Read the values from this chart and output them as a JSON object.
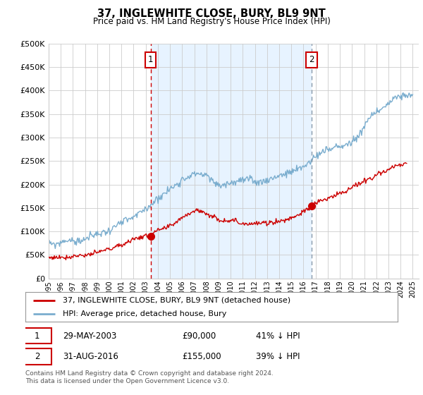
{
  "title": "37, INGLEWHITE CLOSE, BURY, BL9 9NT",
  "subtitle": "Price paid vs. HM Land Registry's House Price Index (HPI)",
  "ylim": [
    0,
    500000
  ],
  "xlim_start": 1995.0,
  "xlim_end": 2025.5,
  "purchase1_date": 2003.4,
  "purchase1_price": 90000,
  "purchase2_date": 2016.67,
  "purchase2_price": 155000,
  "legend_red": "37, INGLEWHITE CLOSE, BURY, BL9 9NT (detached house)",
  "legend_blue": "HPI: Average price, detached house, Bury",
  "footer": "Contains HM Land Registry data © Crown copyright and database right 2024.\nThis data is licensed under the Open Government Licence v3.0.",
  "background_color": "#ffffff",
  "grid_color": "#cccccc",
  "red_color": "#cc0000",
  "blue_color": "#7aadce",
  "shade_color": "#ddeeff",
  "vline1_color": "#cc0000",
  "vline2_color": "#8899aa"
}
